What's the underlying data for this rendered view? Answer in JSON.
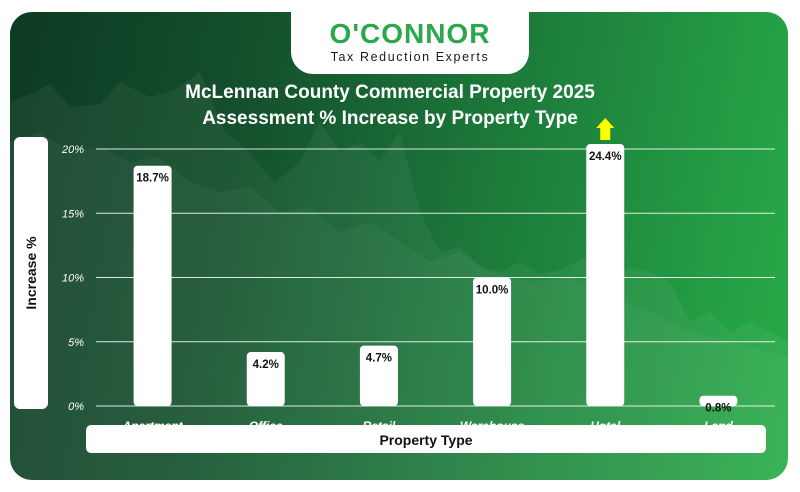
{
  "brand": {
    "name": "O'CONNOR",
    "tagline": "Tax Reduction Experts"
  },
  "colors": {
    "bg_dark": "#0d3a23",
    "bg_light": "#28ad49",
    "brand_green": "#2ba84a",
    "bar": "#ffffff",
    "highlight_arrow": "#ffff00"
  },
  "chart_data": {
    "type": "bar",
    "title_line1": "McLennan County Commercial Property 2025",
    "title_line2": "Assessment % Increase by Property Type",
    "xlabel": "Property Type",
    "ylabel": "Increase %",
    "categories": [
      "Apartment",
      "Office",
      "Retail",
      "Warehouse",
      "Hotel",
      "Land"
    ],
    "values": [
      18.7,
      4.2,
      4.7,
      10.0,
      24.4,
      0.8
    ],
    "value_labels": [
      "18.7%",
      "4.2%",
      "4.7%",
      "10.0%",
      "24.4%",
      "0.8%"
    ],
    "yticks": [
      0,
      5,
      10,
      15,
      20
    ],
    "ytick_labels": [
      "0%",
      "5%",
      "10%",
      "15%",
      "20%"
    ],
    "ylim": [
      0,
      20
    ],
    "grid": true,
    "highlight": "Hotel"
  }
}
